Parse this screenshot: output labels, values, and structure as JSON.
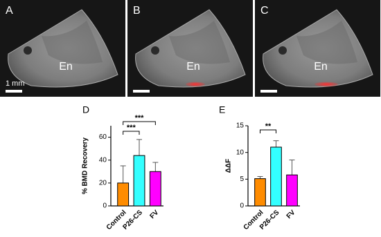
{
  "images": [
    {
      "label": "A",
      "region_label": "En",
      "scale_label": "1 mm",
      "highlight": false
    },
    {
      "label": "B",
      "region_label": "En",
      "highlight": true
    },
    {
      "label": "C",
      "region_label": "En",
      "highlight": true
    }
  ],
  "chart_data": [
    {
      "type": "bar",
      "panel_label": "D",
      "y_label": "% BMD Recovery",
      "categories": [
        "Control",
        "P26-CS",
        "FV"
      ],
      "values": [
        20,
        44,
        30
      ],
      "errors": [
        15,
        14,
        8
      ],
      "colors": [
        "#ff8c00",
        "#33ffff",
        "#ff00ff"
      ],
      "ylim": [
        0,
        70
      ],
      "yticks": [
        0,
        20,
        40,
        60
      ],
      "annotations": [
        {
          "text": "***",
          "between": [
            "Control",
            "P26-CS"
          ]
        },
        {
          "text": "***",
          "between": [
            "Control",
            "FV"
          ]
        }
      ]
    },
    {
      "type": "bar",
      "panel_label": "E",
      "y_label": "ΔΔF",
      "categories": [
        "Control",
        "P26-CS",
        "FV"
      ],
      "values": [
        5.1,
        11,
        5.8
      ],
      "errors": [
        0.4,
        1.2,
        2.8
      ],
      "colors": [
        "#ff8c00",
        "#33ffff",
        "#ff00ff"
      ],
      "ylim": [
        0,
        15
      ],
      "yticks": [
        0,
        5,
        10,
        15
      ],
      "annotations": [
        {
          "text": "**",
          "between": [
            "Control",
            "P26-CS"
          ]
        }
      ]
    }
  ]
}
